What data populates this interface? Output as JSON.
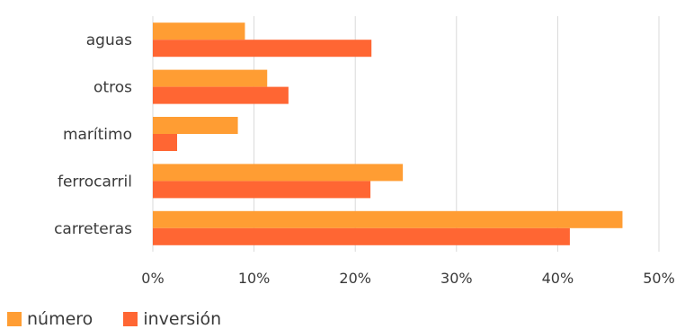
{
  "chart_data": {
    "type": "bar",
    "orientation": "horizontal",
    "categories": [
      "aguas",
      "otros",
      "marítimo",
      "ferrocarril",
      "carreteras"
    ],
    "series": [
      {
        "name": "número",
        "color": "#FF9D33",
        "values": [
          9.1,
          11.3,
          8.4,
          24.7,
          46.4
        ]
      },
      {
        "name": "inversión",
        "color": "#FF6633",
        "values": [
          21.6,
          13.4,
          2.4,
          21.5,
          41.2
        ]
      }
    ],
    "xlim": [
      0,
      50
    ],
    "xticks": [
      0,
      10,
      20,
      30,
      40,
      50
    ],
    "xtick_labels": [
      "0%",
      "10%",
      "20%",
      "30%",
      "40%",
      "50%"
    ],
    "title": "",
    "xlabel": "",
    "ylabel": "",
    "grid": "vertical",
    "legend": "bottom-left"
  }
}
